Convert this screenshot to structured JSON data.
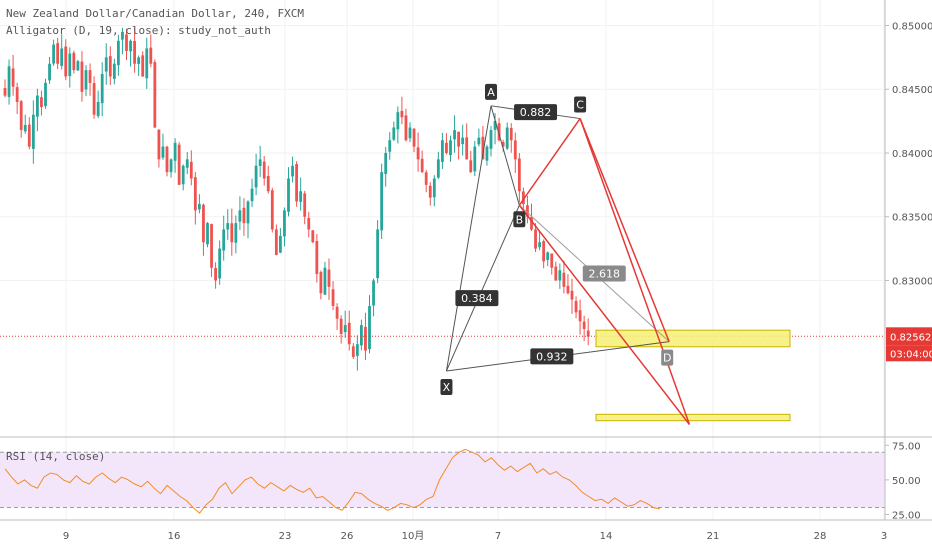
{
  "header": {
    "title_line": "New Zealand Dollar/Canadian Dollar, 240, FXCM",
    "study_line": "Alligator (D, 19, close): study_not_auth"
  },
  "rsi": {
    "label": "RSI (14, close)",
    "upper": 70,
    "lower": 30,
    "ticks": [
      "75.00",
      "50.00",
      "25.00"
    ],
    "line_color": "#f28c28",
    "band_color": "#f3e6fb",
    "values": [
      58,
      52,
      47,
      50,
      46,
      44,
      52,
      55,
      54,
      50,
      48,
      53,
      49,
      47,
      52,
      55,
      51,
      48,
      52,
      50,
      47,
      45,
      49,
      44,
      40,
      46,
      42,
      38,
      35,
      30,
      26,
      32,
      36,
      44,
      48,
      40,
      45,
      50,
      52,
      47,
      44,
      48,
      45,
      42,
      46,
      43,
      41,
      44,
      37,
      38,
      34,
      30,
      28,
      34,
      41,
      40,
      36,
      33,
      31,
      28,
      30,
      33,
      32,
      30,
      32,
      36,
      38,
      50,
      58,
      66,
      70,
      72,
      70,
      68,
      63,
      66,
      61,
      57,
      60,
      56,
      59,
      62,
      55,
      58,
      54,
      56,
      52,
      50,
      46,
      41,
      38,
      35,
      36,
      33,
      37,
      34,
      31,
      32,
      35,
      33,
      30,
      29
    ]
  },
  "chart_data": {
    "type": "candlestick",
    "symbol": "New Zealand Dollar/Canadian Dollar",
    "timeframe": "240",
    "source": "FXCM",
    "y_ticks": [
      "0.85000",
      "0.84500",
      "0.84000",
      "0.83500",
      "0.83000"
    ],
    "ylim": [
      0.8178,
      0.852
    ],
    "x_ticks": [
      "9",
      "16",
      "23",
      "26",
      "10月",
      "7",
      "14",
      "21",
      "28",
      "3"
    ],
    "current_price": "0.82562",
    "countdown": "03:04:00",
    "up_color": "#26a69a",
    "down_color": "#ef5350",
    "closes": [
      0.8445,
      0.8468,
      0.8452,
      0.844,
      0.8418,
      0.8422,
      0.8405,
      0.843,
      0.8445,
      0.8436,
      0.8455,
      0.847,
      0.8485,
      0.847,
      0.8482,
      0.846,
      0.8478,
      0.8465,
      0.8472,
      0.8448,
      0.8465,
      0.8455,
      0.843,
      0.844,
      0.8462,
      0.8475,
      0.846,
      0.847,
      0.8488,
      0.8495,
      0.848,
      0.8488,
      0.847,
      0.8475,
      0.846,
      0.8482,
      0.847,
      0.842,
      0.8395,
      0.8405,
      0.8385,
      0.8395,
      0.8408,
      0.8375,
      0.839,
      0.8395,
      0.838,
      0.8355,
      0.836,
      0.833,
      0.8345,
      0.831,
      0.83,
      0.8325,
      0.834,
      0.8345,
      0.833,
      0.8345,
      0.8355,
      0.8345,
      0.8362,
      0.8372,
      0.839,
      0.8395,
      0.838,
      0.837,
      0.834,
      0.832,
      0.8335,
      0.8355,
      0.838,
      0.839,
      0.8362,
      0.837,
      0.835,
      0.834,
      0.833,
      0.8305,
      0.829,
      0.831,
      0.8295,
      0.828,
      0.827,
      0.8258,
      0.8265,
      0.825,
      0.824,
      0.825,
      0.8265,
      0.8245,
      0.828,
      0.83,
      0.834,
      0.8385,
      0.84,
      0.841,
      0.842,
      0.8432,
      0.8428,
      0.841,
      0.842,
      0.8405,
      0.8395,
      0.8385,
      0.8375,
      0.8365,
      0.838,
      0.8395,
      0.841,
      0.84,
      0.841,
      0.8418,
      0.8405,
      0.8412,
      0.8395,
      0.8385,
      0.8405,
      0.8412,
      0.8395,
      0.8405,
      0.8418,
      0.8425,
      0.841,
      0.8405,
      0.842,
      0.841,
      0.8395,
      0.837,
      0.836,
      0.835,
      0.834,
      0.8325,
      0.833,
      0.8315,
      0.8322,
      0.831,
      0.83,
      0.8308,
      0.8295,
      0.829,
      0.8285,
      0.8275,
      0.8268,
      0.8262,
      0.8256
    ],
    "harmonic_pattern": {
      "points": [
        {
          "label": "X",
          "t": 109,
          "price": 0.8229
        },
        {
          "label": "A",
          "t": 120,
          "price": 0.8437
        },
        {
          "label": "B",
          "t": 127,
          "price": 0.8359
        },
        {
          "label": "C",
          "t": 142,
          "price": 0.8427
        },
        {
          "label": "D",
          "t": 164,
          "price": 0.8252
        }
      ],
      "extension_point": {
        "t": 169,
        "price": 0.8187
      },
      "ratios": [
        {
          "label": "0.384",
          "between": "XB"
        },
        {
          "label": "0.882",
          "between": "AC"
        },
        {
          "label": "2.618",
          "between": "BD"
        },
        {
          "label": "0.932",
          "between": "XD"
        }
      ],
      "zones": [
        {
          "top": 0.8261,
          "bottom": 0.8248
        },
        {
          "top": 0.8195,
          "bottom": 0.819
        }
      ]
    }
  }
}
